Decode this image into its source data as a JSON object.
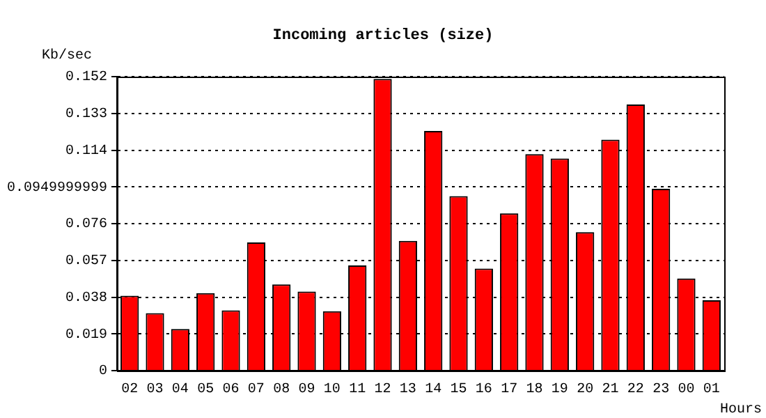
{
  "chart_data": {
    "type": "bar",
    "title": "Incoming articles (size)",
    "ylabel": "Kb/sec",
    "xlabel": "Hours",
    "categories": [
      "02",
      "03",
      "04",
      "05",
      "06",
      "07",
      "08",
      "09",
      "10",
      "11",
      "12",
      "13",
      "14",
      "15",
      "16",
      "17",
      "18",
      "19",
      "20",
      "21",
      "22",
      "23",
      "00",
      "01"
    ],
    "values": [
      0.0387,
      0.0297,
      0.0215,
      0.0401,
      0.0312,
      0.0663,
      0.0446,
      0.0409,
      0.0307,
      0.0544,
      0.1508,
      0.0671,
      0.1239,
      0.0902,
      0.0528,
      0.0813,
      0.1119,
      0.1097,
      0.0716,
      0.1194,
      0.1376,
      0.094,
      0.0476,
      0.0364
    ],
    "color": "#ff0000",
    "ylim": [
      0,
      0.152
    ],
    "yticks": [
      0,
      0.019,
      0.038,
      0.057,
      0.076,
      0.0949999999,
      0.114,
      0.133,
      0.152
    ],
    "grid": "y",
    "line_style": "dotted",
    "legend": false
  }
}
